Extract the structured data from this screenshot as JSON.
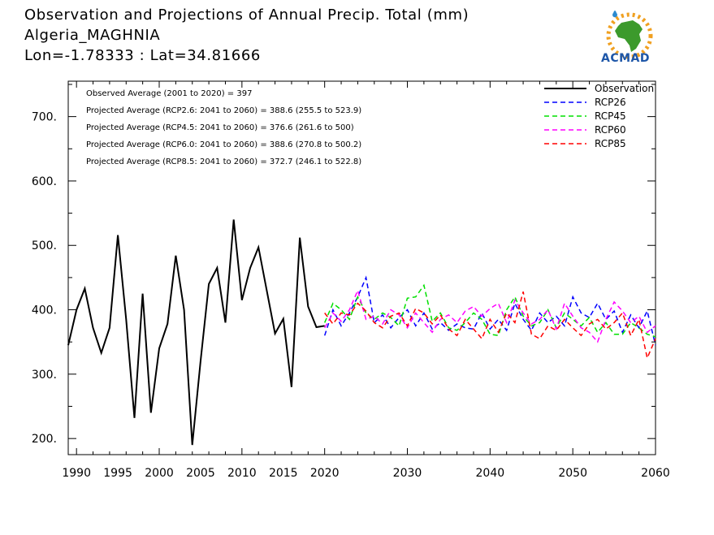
{
  "header": {
    "title_line1": "Observation and Projections of Annual Precip. Total (mm)",
    "title_line2": "Algeria_MAGHNIA",
    "title_line3": "Lon=-1.78333 : Lat=34.81666"
  },
  "logo": {
    "text": "ACMAD",
    "icon": "acmad-africa-logo-icon"
  },
  "stats": {
    "observed": "Observed Average (2001 to 2020) = 397",
    "rcp26": "Projected Average (RCP2.6: 2041 to 2060) = 388.6 (255.5 to 523.9)",
    "rcp45": "Projected Average (RCP4.5: 2041 to 2060) = 376.6 (261.6 to 500)",
    "rcp60": "Projected Average (RCP6.0: 2041 to 2060) = 388.6 (270.8 to 500.2)",
    "rcp85": "Projected Average (RCP8.5: 2041 to 2060) = 372.7 (246.1 to 522.8)"
  },
  "chart_data": {
    "type": "line",
    "xlim": [
      1989,
      2060
    ],
    "ylim": [
      175,
      755
    ],
    "x_ticks": [
      1990,
      1995,
      2000,
      2005,
      2010,
      2015,
      2020,
      2030,
      2040,
      2050,
      2060
    ],
    "x_tick_labels": [
      "1990",
      "1995",
      "2000",
      "2005",
      "2010",
      "2015",
      "2020",
      "2030",
      "2040",
      "2050",
      "2060"
    ],
    "y_ticks": [
      200,
      300,
      400,
      500,
      600,
      700
    ],
    "y_tick_labels": [
      "200.",
      "300.",
      "400.",
      "500.",
      "600.",
      "700."
    ],
    "legend_position": "top-right",
    "series": [
      {
        "name": "Observation",
        "color": "#000000",
        "dashed": false,
        "x": [
          1989,
          1990,
          1991,
          1992,
          1993,
          1994,
          1995,
          1996,
          1997,
          1998,
          1999,
          2000,
          2001,
          2002,
          2003,
          2004,
          2005,
          2006,
          2007,
          2008,
          2009,
          2010,
          2011,
          2012,
          2013,
          2014,
          2015,
          2016,
          2017,
          2018,
          2019,
          2020
        ],
        "y": [
          345,
          400,
          433,
          372,
          333,
          372,
          516,
          385,
          232,
          425,
          240,
          340,
          378,
          484,
          400,
          190,
          320,
          440,
          465,
          380,
          540,
          415,
          465,
          497,
          430,
          363,
          386,
          280,
          512,
          405,
          373,
          375
        ]
      },
      {
        "name": "RCP26",
        "color": "#0000ff",
        "dashed": true,
        "x": [
          2020,
          2021,
          2022,
          2023,
          2024,
          2025,
          2026,
          2027,
          2028,
          2029,
          2030,
          2031,
          2032,
          2033,
          2034,
          2035,
          2036,
          2037,
          2038,
          2039,
          2040,
          2041,
          2042,
          2043,
          2044,
          2045,
          2046,
          2047,
          2048,
          2049,
          2050,
          2051,
          2052,
          2053,
          2054,
          2055,
          2056,
          2057,
          2058,
          2059,
          2060
        ],
        "y": [
          360,
          400,
          375,
          395,
          420,
          450,
          380,
          392,
          372,
          388,
          400,
          375,
          395,
          370,
          380,
          368,
          378,
          372,
          370,
          395,
          370,
          385,
          368,
          410,
          385,
          368,
          395,
          380,
          390,
          375,
          420,
          395,
          388,
          410,
          385,
          398,
          365,
          392,
          372,
          398,
          345
        ]
      },
      {
        "name": "RCP45",
        "color": "#00e000",
        "dashed": true,
        "x": [
          2020,
          2021,
          2022,
          2023,
          2024,
          2025,
          2026,
          2027,
          2028,
          2029,
          2030,
          2031,
          2032,
          2033,
          2034,
          2035,
          2036,
          2037,
          2038,
          2039,
          2040,
          2041,
          2042,
          2043,
          2044,
          2045,
          2046,
          2047,
          2048,
          2049,
          2050,
          2051,
          2052,
          2053,
          2054,
          2055,
          2056,
          2057,
          2058,
          2059,
          2060
        ],
        "y": [
          380,
          410,
          400,
          385,
          420,
          395,
          385,
          395,
          388,
          375,
          418,
          420,
          438,
          382,
          395,
          372,
          368,
          380,
          395,
          385,
          362,
          360,
          400,
          420,
          390,
          375,
          380,
          400,
          372,
          395,
          385,
          375,
          388,
          365,
          380,
          362,
          362,
          380,
          372,
          362,
          358
        ]
      },
      {
        "name": "RCP60",
        "color": "#ff00ff",
        "dashed": true,
        "x": [
          2020,
          2021,
          2022,
          2023,
          2024,
          2025,
          2026,
          2027,
          2028,
          2029,
          2030,
          2031,
          2032,
          2033,
          2034,
          2035,
          2036,
          2037,
          2038,
          2039,
          2040,
          2041,
          2042,
          2043,
          2044,
          2045,
          2046,
          2047,
          2048,
          2049,
          2050,
          2051,
          2052,
          2053,
          2054,
          2055,
          2056,
          2057,
          2058,
          2059,
          2060
        ],
        "y": [
          372,
          395,
          382,
          400,
          430,
          385,
          390,
          378,
          400,
          392,
          372,
          395,
          380,
          365,
          385,
          392,
          380,
          398,
          405,
          390,
          402,
          410,
          380,
          415,
          395,
          378,
          385,
          400,
          370,
          410,
          390,
          372,
          365,
          350,
          385,
          412,
          398,
          380,
          390,
          365,
          375
        ]
      },
      {
        "name": "RCP85",
        "color": "#ff0000",
        "dashed": true,
        "x": [
          2020,
          2021,
          2022,
          2023,
          2024,
          2025,
          2026,
          2027,
          2028,
          2029,
          2030,
          2031,
          2032,
          2033,
          2034,
          2035,
          2036,
          2037,
          2038,
          2039,
          2040,
          2041,
          2042,
          2043,
          2044,
          2045,
          2046,
          2047,
          2048,
          2049,
          2050,
          2051,
          2052,
          2053,
          2054,
          2055,
          2056,
          2057,
          2058,
          2059,
          2060
        ],
        "y": [
          395,
          378,
          395,
          392,
          410,
          398,
          380,
          372,
          390,
          395,
          375,
          402,
          395,
          378,
          392,
          370,
          360,
          385,
          370,
          355,
          385,
          365,
          395,
          380,
          428,
          362,
          355,
          375,
          368,
          385,
          372,
          360,
          378,
          385,
          370,
          380,
          395,
          360,
          385,
          325,
          355
        ]
      }
    ]
  }
}
